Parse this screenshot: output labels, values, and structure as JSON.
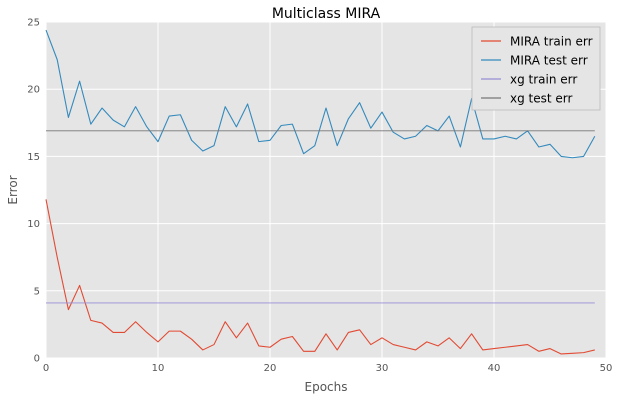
{
  "chart_data": {
    "type": "line",
    "title": "Multiclass MIRA",
    "xlabel": "Epochs",
    "ylabel": "Error",
    "xlim": [
      0,
      50
    ],
    "ylim": [
      0,
      25
    ],
    "xticks": [
      0,
      10,
      20,
      30,
      40,
      50
    ],
    "yticks": [
      0,
      5,
      10,
      15,
      20,
      25
    ],
    "grid": true,
    "legend_position": "top-right",
    "x": [
      0,
      1,
      2,
      3,
      4,
      5,
      6,
      7,
      8,
      9,
      10,
      11,
      12,
      13,
      14,
      15,
      16,
      17,
      18,
      19,
      20,
      21,
      22,
      23,
      24,
      25,
      26,
      27,
      28,
      29,
      30,
      31,
      32,
      33,
      34,
      35,
      36,
      37,
      38,
      39,
      40,
      41,
      42,
      43,
      44,
      45,
      46,
      47,
      48,
      49
    ],
    "series": [
      {
        "name": "MIRA train err",
        "color": "#e24a33",
        "values": [
          11.8,
          7.5,
          3.6,
          5.4,
          2.8,
          2.6,
          1.9,
          1.9,
          2.7,
          1.9,
          1.2,
          2.0,
          2.0,
          1.4,
          0.6,
          1.0,
          2.7,
          1.5,
          2.6,
          0.9,
          0.8,
          1.4,
          1.6,
          0.5,
          0.5,
          1.8,
          0.6,
          1.9,
          2.1,
          1.0,
          1.5,
          1.0,
          0.8,
          0.6,
          1.2,
          0.9,
          1.5,
          0.7,
          1.8,
          0.6,
          0.7,
          0.8,
          0.9,
          1.0,
          0.5,
          0.7,
          0.3,
          0.35,
          0.4,
          0.6
        ]
      },
      {
        "name": "MIRA test err",
        "color": "#348abd",
        "values": [
          24.4,
          22.2,
          17.9,
          20.6,
          17.4,
          18.6,
          17.7,
          17.2,
          18.7,
          17.2,
          16.1,
          18.0,
          18.1,
          16.2,
          15.4,
          15.8,
          18.7,
          17.2,
          18.9,
          16.1,
          16.2,
          17.3,
          17.4,
          15.2,
          15.8,
          18.6,
          15.8,
          17.8,
          19.0,
          17.1,
          18.3,
          16.8,
          16.3,
          16.5,
          17.3,
          16.9,
          18.0,
          15.7,
          19.3,
          16.3,
          16.3,
          16.5,
          16.3,
          16.9,
          15.7,
          15.9,
          15.0,
          14.9,
          15.0,
          16.5
        ]
      },
      {
        "name": "xg train err",
        "color": "#988ed5",
        "values": [
          4.1,
          4.1,
          4.1,
          4.1,
          4.1,
          4.1,
          4.1,
          4.1,
          4.1,
          4.1,
          4.1,
          4.1,
          4.1,
          4.1,
          4.1,
          4.1,
          4.1,
          4.1,
          4.1,
          4.1,
          4.1,
          4.1,
          4.1,
          4.1,
          4.1,
          4.1,
          4.1,
          4.1,
          4.1,
          4.1,
          4.1,
          4.1,
          4.1,
          4.1,
          4.1,
          4.1,
          4.1,
          4.1,
          4.1,
          4.1,
          4.1,
          4.1,
          4.1,
          4.1,
          4.1,
          4.1,
          4.1,
          4.1,
          4.1,
          4.1
        ]
      },
      {
        "name": "xg test err",
        "color": "#777777",
        "values": [
          16.9,
          16.9,
          16.9,
          16.9,
          16.9,
          16.9,
          16.9,
          16.9,
          16.9,
          16.9,
          16.9,
          16.9,
          16.9,
          16.9,
          16.9,
          16.9,
          16.9,
          16.9,
          16.9,
          16.9,
          16.9,
          16.9,
          16.9,
          16.9,
          16.9,
          16.9,
          16.9,
          16.9,
          16.9,
          16.9,
          16.9,
          16.9,
          16.9,
          16.9,
          16.9,
          16.9,
          16.9,
          16.9,
          16.9,
          16.9,
          16.9,
          16.9,
          16.9,
          16.9,
          16.9,
          16.9,
          16.9,
          16.9,
          16.9,
          16.9
        ]
      }
    ]
  }
}
